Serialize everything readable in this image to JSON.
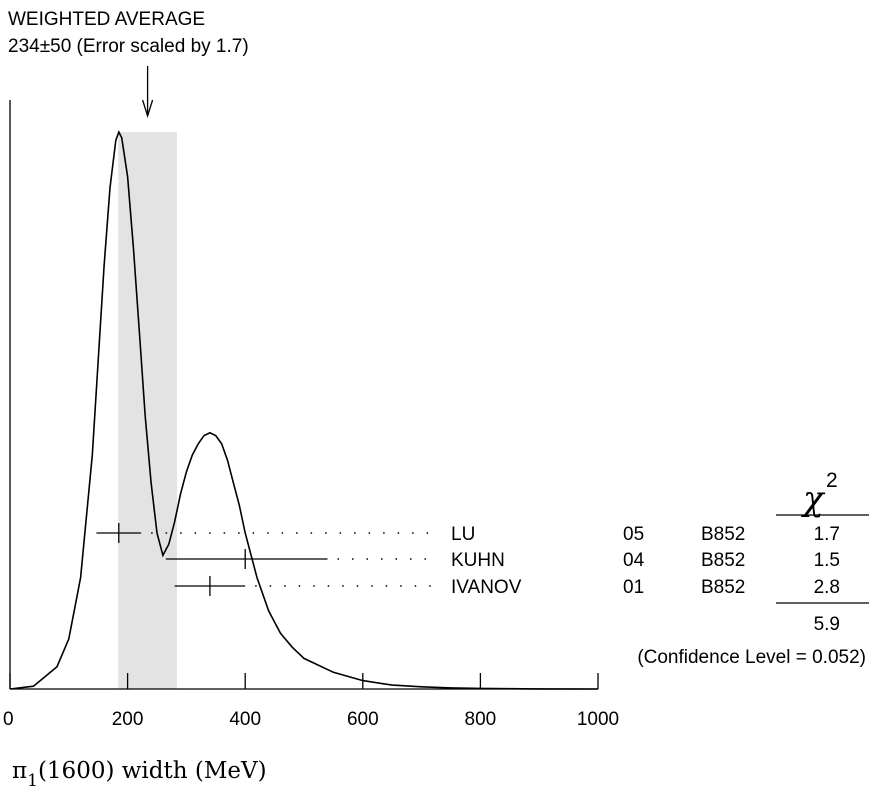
{
  "chart_data": {
    "type": "ideogram",
    "title": "WEIGHTED AVERAGE",
    "subtitle": "234±50 (Error scaled by 1.7)",
    "average": {
      "value": 234,
      "error": 50,
      "scale_factor": 1.7
    },
    "xlim": [
      0,
      1000
    ],
    "x_ticks": [
      0,
      200,
      400,
      600,
      800,
      1000
    ],
    "x_tick_labels": [
      "0",
      "200",
      "400",
      "600",
      "800",
      "1000"
    ],
    "xlabel_symbol": "π",
    "xlabel_subscript": "1",
    "xlabel_text": "(1600) width (MeV)",
    "chi2_symbol": "χ",
    "chi2_superscript": "2",
    "measurements": [
      {
        "name": "LU",
        "year": "05",
        "tech": "B852",
        "value": 185,
        "err_low": 38,
        "err_high": 38,
        "chi2": "1.7"
      },
      {
        "name": "KUHN",
        "year": "04",
        "tech": "B852",
        "value": 400,
        "err_low": 135,
        "err_high": 140,
        "chi2": "1.5"
      },
      {
        "name": "IVANOV",
        "year": "01",
        "tech": "B852",
        "value": 340,
        "err_low": 60,
        "err_high": 60,
        "chi2": "2.8"
      }
    ],
    "chi2_total": "5.9",
    "confidence_level": "(Confidence Level = 0.052)",
    "curve": {
      "x": [
        0,
        40,
        80,
        100,
        120,
        140,
        160,
        170,
        180,
        185,
        190,
        200,
        210,
        220,
        230,
        240,
        250,
        260,
        270,
        280,
        290,
        300,
        310,
        320,
        330,
        340,
        350,
        360,
        370,
        380,
        390,
        400,
        420,
        440,
        460,
        480,
        500,
        550,
        600,
        650,
        700,
        750,
        800,
        850,
        900,
        1000
      ],
      "y": [
        0.0,
        0.005,
        0.04,
        0.09,
        0.2,
        0.42,
        0.76,
        0.9,
        0.985,
        1.0,
        0.99,
        0.92,
        0.79,
        0.64,
        0.49,
        0.37,
        0.28,
        0.24,
        0.26,
        0.3,
        0.35,
        0.39,
        0.42,
        0.44,
        0.455,
        0.46,
        0.455,
        0.44,
        0.41,
        0.37,
        0.33,
        0.28,
        0.2,
        0.14,
        0.1,
        0.075,
        0.055,
        0.03,
        0.015,
        0.007,
        0.004,
        0.002,
        0.001,
        0.0005,
        0.0002,
        0.0
      ]
    }
  }
}
